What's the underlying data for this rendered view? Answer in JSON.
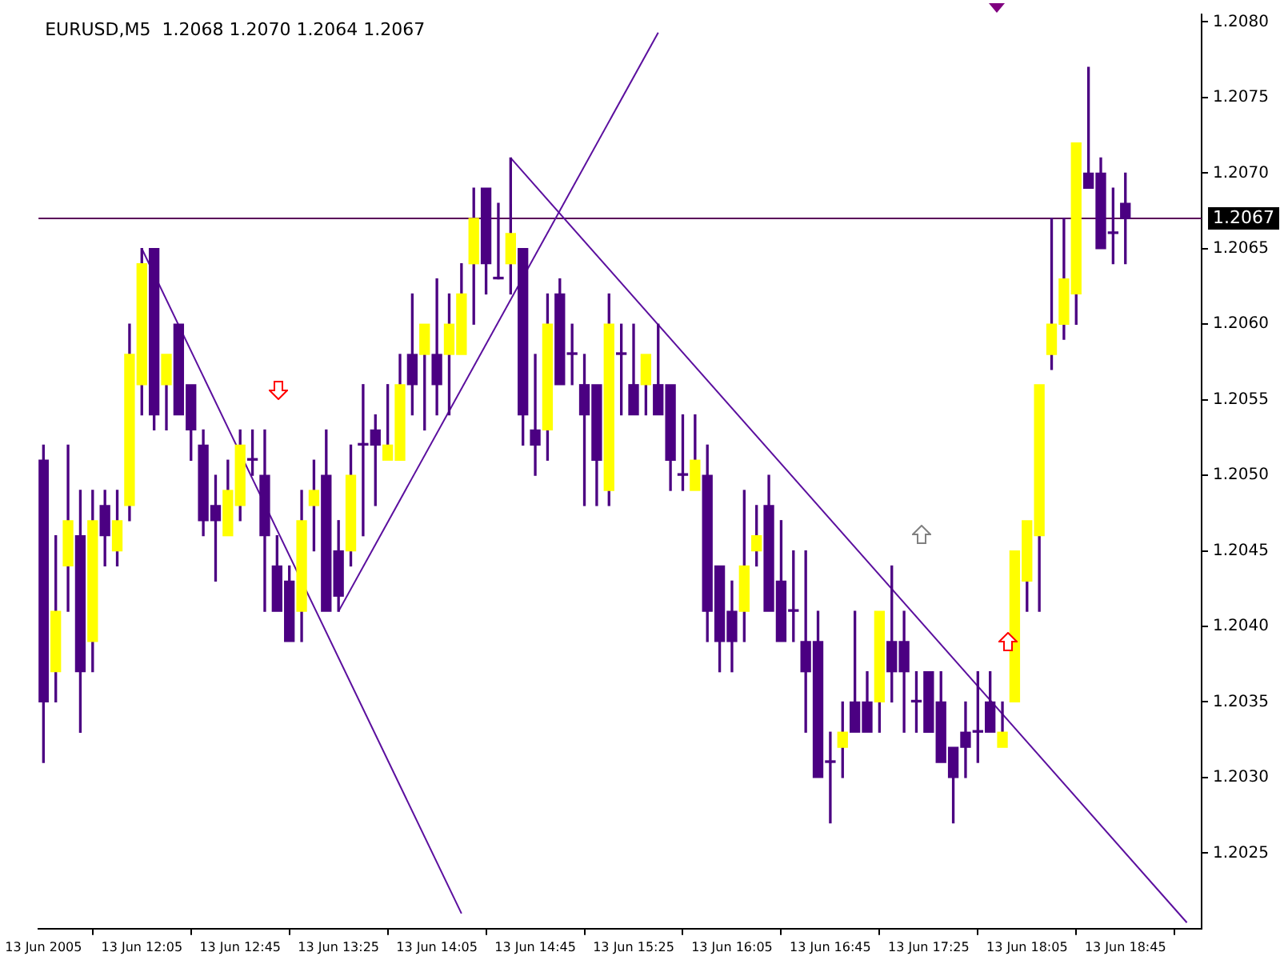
{
  "chart_data": {
    "type": "candlestick",
    "title": "EURUSD,M5  1.2068 1.2070 1.2064 1.2067",
    "x": [
      "2005-06-13T11:25",
      "2005-06-13T11:30",
      "2005-06-13T11:35",
      "2005-06-13T11:40",
      "2005-06-13T11:45",
      "2005-06-13T11:50",
      "2005-06-13T11:55",
      "2005-06-13T12:00",
      "2005-06-13T12:05",
      "2005-06-13T12:10",
      "2005-06-13T12:15",
      "2005-06-13T12:20",
      "2005-06-13T12:25",
      "2005-06-13T12:30",
      "2005-06-13T12:35",
      "2005-06-13T12:40",
      "2005-06-13T12:45",
      "2005-06-13T12:50",
      "2005-06-13T12:55",
      "2005-06-13T13:00",
      "2005-06-13T13:05",
      "2005-06-13T13:10",
      "2005-06-13T13:15",
      "2005-06-13T13:20",
      "2005-06-13T13:25",
      "2005-06-13T13:30",
      "2005-06-13T13:35",
      "2005-06-13T13:40",
      "2005-06-13T13:45",
      "2005-06-13T13:50",
      "2005-06-13T13:55",
      "2005-06-13T14:00",
      "2005-06-13T14:05",
      "2005-06-13T14:10",
      "2005-06-13T14:15",
      "2005-06-13T14:20",
      "2005-06-13T14:25",
      "2005-06-13T14:30",
      "2005-06-13T14:35",
      "2005-06-13T14:40",
      "2005-06-13T14:45",
      "2005-06-13T14:50",
      "2005-06-13T14:55",
      "2005-06-13T15:00",
      "2005-06-13T15:05",
      "2005-06-13T15:10",
      "2005-06-13T15:15",
      "2005-06-13T15:20",
      "2005-06-13T15:25",
      "2005-06-13T15:30",
      "2005-06-13T15:35",
      "2005-06-13T15:40",
      "2005-06-13T15:45",
      "2005-06-13T15:50",
      "2005-06-13T15:55",
      "2005-06-13T16:00",
      "2005-06-13T16:05",
      "2005-06-13T16:10",
      "2005-06-13T16:15",
      "2005-06-13T16:20",
      "2005-06-13T16:25",
      "2005-06-13T16:30",
      "2005-06-13T16:35",
      "2005-06-13T16:40",
      "2005-06-13T16:45",
      "2005-06-13T16:50",
      "2005-06-13T16:55",
      "2005-06-13T17:00",
      "2005-06-13T17:05",
      "2005-06-13T17:10",
      "2005-06-13T17:15",
      "2005-06-13T17:20",
      "2005-06-13T17:25",
      "2005-06-13T17:30",
      "2005-06-13T17:35",
      "2005-06-13T17:40",
      "2005-06-13T17:45",
      "2005-06-13T17:50",
      "2005-06-13T17:55",
      "2005-06-13T18:00",
      "2005-06-13T18:05",
      "2005-06-13T18:10",
      "2005-06-13T18:15",
      "2005-06-13T18:20",
      "2005-06-13T18:25",
      "2005-06-13T18:30",
      "2005-06-13T18:35",
      "2005-06-13T18:40",
      "2005-06-13T18:45"
    ],
    "ohlc": [
      [
        1.2051,
        1.2052,
        1.2031,
        1.2035
      ],
      [
        1.2037,
        1.2046,
        1.2035,
        1.2041
      ],
      [
        1.2044,
        1.2052,
        1.2041,
        1.2047
      ],
      [
        1.2046,
        1.2049,
        1.2033,
        1.2037
      ],
      [
        1.2039,
        1.2049,
        1.2037,
        1.2047
      ],
      [
        1.2048,
        1.2049,
        1.2044,
        1.2046
      ],
      [
        1.2045,
        1.2049,
        1.2044,
        1.2047
      ],
      [
        1.2048,
        1.206,
        1.2047,
        1.2058
      ],
      [
        1.2056,
        1.2065,
        1.2054,
        1.2064
      ],
      [
        1.2065,
        1.2065,
        1.2053,
        1.2054
      ],
      [
        1.2056,
        1.2058,
        1.2053,
        1.2058
      ],
      [
        1.206,
        1.206,
        1.2054,
        1.2054
      ],
      [
        1.2056,
        1.2056,
        1.2051,
        1.2053
      ],
      [
        1.2052,
        1.2053,
        1.2046,
        1.2047
      ],
      [
        1.2048,
        1.205,
        1.2043,
        1.2047
      ],
      [
        1.2046,
        1.2051,
        1.2046,
        1.2049
      ],
      [
        1.2048,
        1.2053,
        1.2047,
        1.2052
      ],
      [
        1.2051,
        1.2053,
        1.205,
        1.2051
      ],
      [
        1.205,
        1.2053,
        1.2041,
        1.2046
      ],
      [
        1.2044,
        1.2046,
        1.2041,
        1.2041
      ],
      [
        1.2043,
        1.2044,
        1.2039,
        1.2039
      ],
      [
        1.2041,
        1.2049,
        1.2039,
        1.2047
      ],
      [
        1.2048,
        1.2051,
        1.2045,
        1.2049
      ],
      [
        1.205,
        1.2053,
        1.2041,
        1.2041
      ],
      [
        1.2045,
        1.2047,
        1.2041,
        1.2042
      ],
      [
        1.2045,
        1.2052,
        1.2044,
        1.205
      ],
      [
        1.2052,
        1.2056,
        1.2046,
        1.2052
      ],
      [
        1.2053,
        1.2054,
        1.2048,
        1.2052
      ],
      [
        1.2051,
        1.2056,
        1.2051,
        1.2052
      ],
      [
        1.2051,
        1.2058,
        1.2051,
        1.2056
      ],
      [
        1.2058,
        1.2062,
        1.2054,
        1.2056
      ],
      [
        1.2058,
        1.206,
        1.2053,
        1.206
      ],
      [
        1.2058,
        1.2063,
        1.2054,
        1.2056
      ],
      [
        1.2058,
        1.2062,
        1.2054,
        1.206
      ],
      [
        1.2058,
        1.2064,
        1.2058,
        1.2062
      ],
      [
        1.2064,
        1.2069,
        1.206,
        1.2067
      ],
      [
        1.2069,
        1.2069,
        1.2062,
        1.2064
      ],
      [
        1.2063,
        1.2068,
        1.2063,
        1.2063
      ],
      [
        1.2064,
        1.2071,
        1.2062,
        1.2066
      ],
      [
        1.2065,
        1.2065,
        1.2052,
        1.2054
      ],
      [
        1.2053,
        1.2058,
        1.205,
        1.2052
      ],
      [
        1.2053,
        1.2062,
        1.2051,
        1.206
      ],
      [
        1.2062,
        1.2063,
        1.2056,
        1.2056
      ],
      [
        1.2058,
        1.206,
        1.2056,
        1.2058
      ],
      [
        1.2056,
        1.2058,
        1.2048,
        1.2054
      ],
      [
        1.2056,
        1.2056,
        1.2048,
        1.2051
      ],
      [
        1.2049,
        1.2062,
        1.2048,
        1.206
      ],
      [
        1.2058,
        1.206,
        1.2054,
        1.2058
      ],
      [
        1.2056,
        1.206,
        1.2054,
        1.2054
      ],
      [
        1.2056,
        1.2058,
        1.2054,
        1.2058
      ],
      [
        1.2056,
        1.206,
        1.2054,
        1.2054
      ],
      [
        1.2056,
        1.2056,
        1.2049,
        1.2051
      ],
      [
        1.205,
        1.2054,
        1.2049,
        1.205
      ],
      [
        1.2049,
        1.2054,
        1.2049,
        1.2051
      ],
      [
        1.205,
        1.2052,
        1.2039,
        1.2041
      ],
      [
        1.2044,
        1.2044,
        1.2037,
        1.2039
      ],
      [
        1.2041,
        1.2043,
        1.2037,
        1.2039
      ],
      [
        1.2041,
        1.2049,
        1.2039,
        1.2044
      ],
      [
        1.2045,
        1.2048,
        1.2044,
        1.2046
      ],
      [
        1.2048,
        1.205,
        1.2041,
        1.2041
      ],
      [
        1.2043,
        1.2047,
        1.2039,
        1.2039
      ],
      [
        1.2041,
        1.2045,
        1.2039,
        1.2041
      ],
      [
        1.2039,
        1.2045,
        1.2033,
        1.2037
      ],
      [
        1.2039,
        1.2041,
        1.203,
        1.203
      ],
      [
        1.2031,
        1.2033,
        1.2027,
        1.2031
      ],
      [
        1.2032,
        1.2035,
        1.203,
        1.2033
      ],
      [
        1.2035,
        1.2041,
        1.2033,
        1.2033
      ],
      [
        1.2035,
        1.2037,
        1.2033,
        1.2033
      ],
      [
        1.2035,
        1.2041,
        1.2033,
        1.2041
      ],
      [
        1.2039,
        1.2044,
        1.2035,
        1.2037
      ],
      [
        1.2039,
        1.2041,
        1.2033,
        1.2037
      ],
      [
        1.2035,
        1.2037,
        1.2033,
        1.2035
      ],
      [
        1.2037,
        1.2037,
        1.2033,
        1.2033
      ],
      [
        1.2035,
        1.2037,
        1.2031,
        1.2031
      ],
      [
        1.2032,
        1.2032,
        1.2027,
        1.203
      ],
      [
        1.2033,
        1.2035,
        1.203,
        1.2032
      ],
      [
        1.2033,
        1.2037,
        1.2031,
        1.2033
      ],
      [
        1.2035,
        1.2037,
        1.2033,
        1.2033
      ],
      [
        1.2032,
        1.2035,
        1.2032,
        1.2033
      ],
      [
        1.2035,
        1.2045,
        1.2035,
        1.2045
      ],
      [
        1.2043,
        1.2047,
        1.2041,
        1.2047
      ],
      [
        1.2046,
        1.2056,
        1.2041,
        1.2056
      ],
      [
        1.2058,
        1.2067,
        1.2057,
        1.206
      ],
      [
        1.206,
        1.2067,
        1.2059,
        1.2063
      ],
      [
        1.2062,
        1.2072,
        1.206,
        1.2072
      ],
      [
        1.207,
        1.2077,
        1.2069,
        1.2069
      ],
      [
        1.207,
        1.2071,
        1.2065,
        1.2065
      ],
      [
        1.2066,
        1.2069,
        1.2064,
        1.2066
      ],
      [
        1.2068,
        1.207,
        1.2064,
        1.2067
      ]
    ],
    "colors": [
      "#4b0082",
      "#ffff00",
      "#ffff00",
      "#4b0082",
      "#ffff00",
      "#4b0082",
      "#ffff00",
      "#ffff00",
      "#ffff00",
      "#4b0082",
      "#ffff00",
      "#4b0082",
      "#4b0082",
      "#4b0082",
      "#4b0082",
      "#ffff00",
      "#ffff00",
      "#4b0082",
      "#4b0082",
      "#4b0082",
      "#4b0082",
      "#ffff00",
      "#ffff00",
      "#4b0082",
      "#4b0082",
      "#ffff00",
      "#4b0082",
      "#4b0082",
      "#ffff00",
      "#ffff00",
      "#4b0082",
      "#ffff00",
      "#4b0082",
      "#ffff00",
      "#ffff00",
      "#ffff00",
      "#4b0082",
      "#4b0082",
      "#ffff00",
      "#4b0082",
      "#4b0082",
      "#ffff00",
      "#4b0082",
      "#4b0082",
      "#4b0082",
      "#4b0082",
      "#ffff00",
      "#4b0082",
      "#4b0082",
      "#ffff00",
      "#4b0082",
      "#4b0082",
      "#4b0082",
      "#ffff00",
      "#4b0082",
      "#4b0082",
      "#4b0082",
      "#ffff00",
      "#ffff00",
      "#4b0082",
      "#4b0082",
      "#4b0082",
      "#4b0082",
      "#4b0082",
      "#4b0082",
      "#ffff00",
      "#4b0082",
      "#4b0082",
      "#ffff00",
      "#4b0082",
      "#4b0082",
      "#4b0082",
      "#4b0082",
      "#4b0082",
      "#4b0082",
      "#4b0082",
      "#4b0082",
      "#4b0082",
      "#ffff00",
      "#ffff00",
      "#ffff00",
      "#ffff00",
      "#ffff00",
      "#ffff00",
      "#ffff00",
      "#4b0082",
      "#4b0082",
      "#4b0082",
      "#4b0082"
    ],
    "series": [
      {
        "type": "line",
        "color": "#5b0f9e",
        "x": [
          "2005-06-13T12:05",
          "2005-06-13T14:15"
        ],
        "values": [
          1.2065,
          1.2021
        ]
      },
      {
        "type": "line",
        "color": "#5b0f9e",
        "x": [
          "2005-06-13T13:25",
          "2005-06-13T15:35"
        ],
        "values": [
          1.2041,
          1.20793
        ]
      },
      {
        "type": "line",
        "color": "#5b0f9e",
        "x": [
          "2005-06-13T14:35",
          "2005-06-13T19:10"
        ],
        "values": [
          1.2071,
          1.20204
        ]
      }
    ],
    "ref_lines": [
      {
        "axis": "y",
        "value": 1.2067,
        "label": "1.2067",
        "color": "#5a005a"
      }
    ],
    "xlim": [
      "2005-06-13T11:23",
      "2005-06-13T19:16"
    ],
    "xticks": [
      {
        "value": "2005-06-13T11:25",
        "label": "13 Jun 2005"
      },
      {
        "value": "2005-06-13T12:05",
        "label": "13 Jun 12:05"
      },
      {
        "value": "2005-06-13T12:45",
        "label": "13 Jun 12:45"
      },
      {
        "value": "2005-06-13T13:25",
        "label": "13 Jun 13:25"
      },
      {
        "value": "2005-06-13T14:05",
        "label": "13 Jun 14:05"
      },
      {
        "value": "2005-06-13T14:45",
        "label": "13 Jun 14:45"
      },
      {
        "value": "2005-06-13T15:25",
        "label": "13 Jun 15:25"
      },
      {
        "value": "2005-06-13T16:05",
        "label": "13 Jun 16:05"
      },
      {
        "value": "2005-06-13T16:45",
        "label": "13 Jun 16:45"
      },
      {
        "value": "2005-06-13T17:25",
        "label": "13 Jun 17:25"
      },
      {
        "value": "2005-06-13T18:05",
        "label": "13 Jun 18:05"
      },
      {
        "value": "2005-06-13T18:45",
        "label": "13 Jun 18:45"
      }
    ],
    "ylim": [
      1.202,
      1.20805
    ],
    "yticks": [
      {
        "value": 1.2025,
        "label": "1.2025"
      },
      {
        "value": 1.203,
        "label": "1.2030"
      },
      {
        "value": 1.2035,
        "label": "1.2035"
      },
      {
        "value": 1.204,
        "label": "1.2040"
      },
      {
        "value": 1.2045,
        "label": "1.2045"
      },
      {
        "value": 1.205,
        "label": "1.2050"
      },
      {
        "value": 1.2055,
        "label": "1.2055"
      },
      {
        "value": 1.206,
        "label": "1.2060"
      },
      {
        "value": 1.2065,
        "label": "1.2065"
      },
      {
        "value": 1.207,
        "label": "1.2070"
      },
      {
        "value": 1.2075,
        "label": "1.2075"
      },
      {
        "value": 1.208,
        "label": "1.2080"
      }
    ],
    "grid": false,
    "legend": false
  }
}
